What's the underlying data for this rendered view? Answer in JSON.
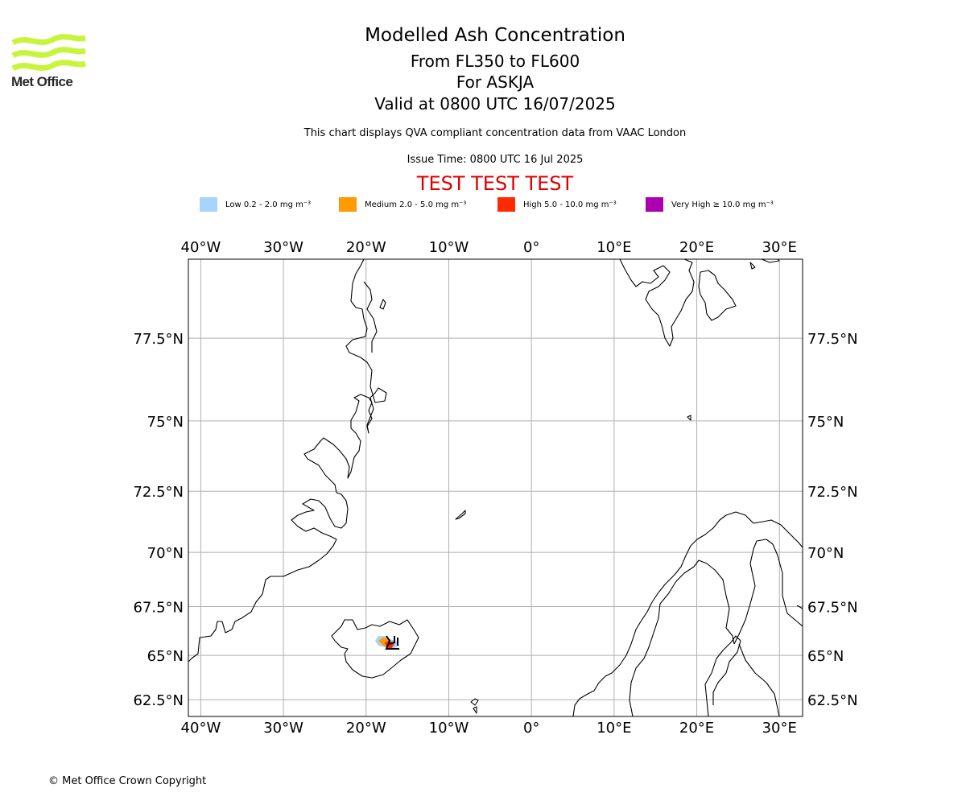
{
  "header": {
    "logo_text": "Met Office",
    "title": "Modelled Ash Concentration",
    "levels": "From FL350 to FL600",
    "volcano": "For ASKJA",
    "valid": "Valid at 0800 UTC 16/07/2025",
    "compliance": "This chart displays QVA compliant concentration data from VAAC London",
    "issue_time": "Issue Time: 0800 UTC 16 Jul 2025",
    "test_banner": "TEST TEST TEST"
  },
  "legend": [
    {
      "label": "Low 0.2 - 2.0 mg m⁻³",
      "color": "#a6d4fa"
    },
    {
      "label": "Medium 2.0 - 5.0 mg m⁻³",
      "color": "#ff9a00"
    },
    {
      "label": "High 5.0 - 10.0 mg m⁻³",
      "color": "#ff2a00"
    },
    {
      "label": "Very High  ≥  10.0 mg m⁻³",
      "color": "#aa00b0"
    }
  ],
  "map": {
    "projection": "Mercator",
    "lon_range": [
      -41.5,
      32.8
    ],
    "lat_range": [
      61.5,
      79.5
    ],
    "grid": true,
    "lon_ticks": [
      {
        "value": -40,
        "label": "40°W"
      },
      {
        "value": -30,
        "label": "30°W"
      },
      {
        "value": -20,
        "label": "20°W"
      },
      {
        "value": -10,
        "label": "10°W"
      },
      {
        "value": 0,
        "label": "0°"
      },
      {
        "value": 10,
        "label": "10°E"
      },
      {
        "value": 20,
        "label": "20°E"
      },
      {
        "value": 30,
        "label": "30°E"
      }
    ],
    "lat_ticks": [
      {
        "value": 62.5,
        "label": "62.5°N"
      },
      {
        "value": 65,
        "label": "65°N"
      },
      {
        "value": 67.5,
        "label": "67.5°N"
      },
      {
        "value": 70,
        "label": "70°N"
      },
      {
        "value": 72.5,
        "label": "72.5°N"
      },
      {
        "value": 75,
        "label": "75°N"
      },
      {
        "value": 77.5,
        "label": "77.5°N"
      }
    ],
    "coastline_color": "#000000",
    "grid_color": "#b0b0b0",
    "ash_colors": {
      "low": "#a6d4fa",
      "medium": "#ff9a00",
      "high": "#ff2a00"
    }
  },
  "footer": {
    "copyright": "© Met Office Crown Copyright"
  }
}
